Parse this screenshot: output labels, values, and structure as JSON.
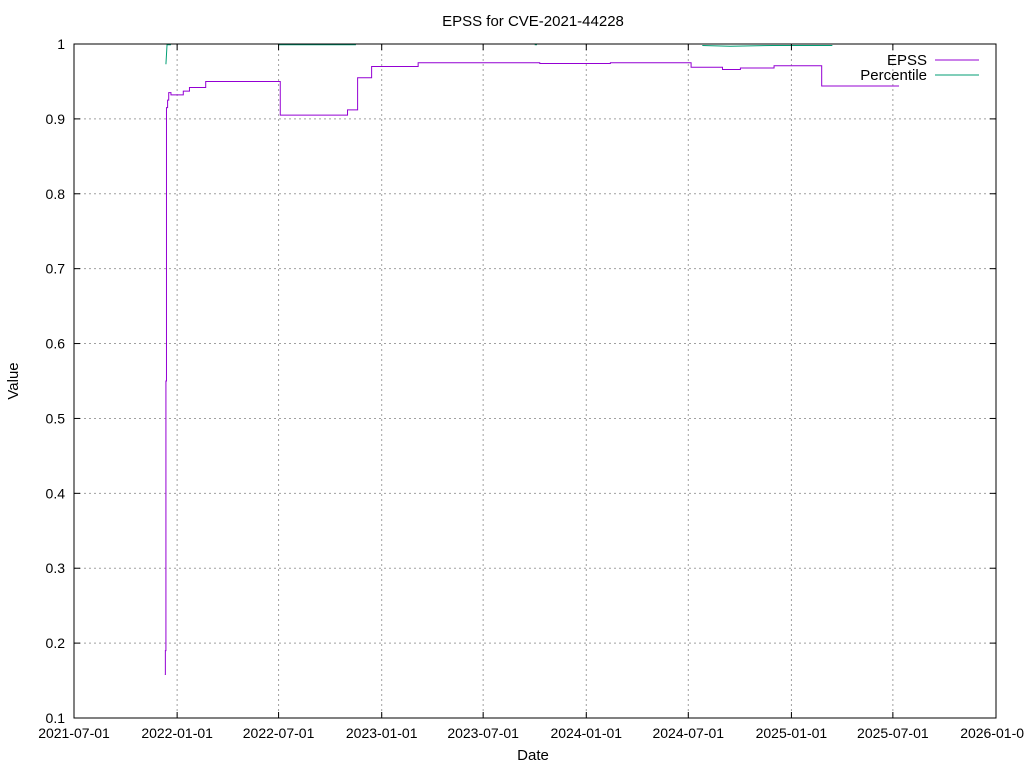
{
  "chart_data": {
    "type": "line",
    "title": "EPSS for CVE-2021-44228",
    "xlabel": "Date",
    "ylabel": "Value",
    "xlim": [
      "2021-07-01",
      "2026-01-01"
    ],
    "ylim": [
      0.1,
      1.0
    ],
    "xticks": [
      "2021-07-01",
      "2022-01-01",
      "2022-07-01",
      "2023-01-01",
      "2023-07-01",
      "2024-01-01",
      "2024-07-01",
      "2025-01-01",
      "2025-07-01",
      "2026-01-01"
    ],
    "yticks": [
      0.1,
      0.2,
      0.3,
      0.4,
      0.5,
      0.6,
      0.7,
      0.8,
      0.9,
      1
    ],
    "ytick_labels": [
      "0.1",
      "0.2",
      "0.3",
      "0.4",
      "0.5",
      "0.6",
      "0.7",
      "0.8",
      "0.9",
      "1"
    ],
    "grid": true,
    "legend_position": "top-right",
    "series": [
      {
        "name": "EPSS",
        "color": "#9400d3",
        "step": true,
        "points": [
          [
            "2021-12-10",
            0.158
          ],
          [
            "2021-12-11",
            0.19
          ],
          [
            "2021-12-12",
            0.55
          ],
          [
            "2021-12-13",
            0.915
          ],
          [
            "2021-12-15",
            0.925
          ],
          [
            "2021-12-17",
            0.935
          ],
          [
            "2021-12-21",
            0.932
          ],
          [
            "2022-01-12",
            0.937
          ],
          [
            "2022-01-23",
            0.942
          ],
          [
            "2022-02-21",
            0.95
          ],
          [
            "2022-07-04",
            0.905
          ],
          [
            "2022-11-01",
            0.912
          ],
          [
            "2022-11-19",
            0.955
          ],
          [
            "2022-12-14",
            0.97
          ],
          [
            "2023-03-07",
            0.975
          ],
          [
            "2023-10-10",
            0.974
          ],
          [
            "2024-02-13",
            0.975
          ],
          [
            "2024-07-06",
            0.969
          ],
          [
            "2024-08-31",
            0.966
          ],
          [
            "2024-10-02",
            0.968
          ],
          [
            "2024-12-01",
            0.971
          ],
          [
            "2025-02-24",
            0.944
          ],
          [
            "2025-07-12",
            0.944
          ]
        ]
      },
      {
        "name": "Percentile",
        "color": "#009e73",
        "step": false,
        "segments": [
          [
            [
              "2021-12-12",
              0.973
            ],
            [
              "2021-12-14",
              0.999
            ],
            [
              "2021-12-21",
              0.999
            ]
          ],
          [
            [
              "2022-07-01",
              0.999
            ],
            [
              "2022-11-16",
              0.999
            ]
          ],
          [
            [
              "2023-10-01",
              0.999
            ],
            [
              "2023-10-05",
              0.999
            ]
          ],
          [
            [
              "2024-07-26",
              0.998
            ],
            [
              "2024-09-14",
              0.997
            ],
            [
              "2024-11-28",
              0.998
            ],
            [
              "2025-03-15",
              0.998
            ]
          ]
        ]
      }
    ]
  }
}
